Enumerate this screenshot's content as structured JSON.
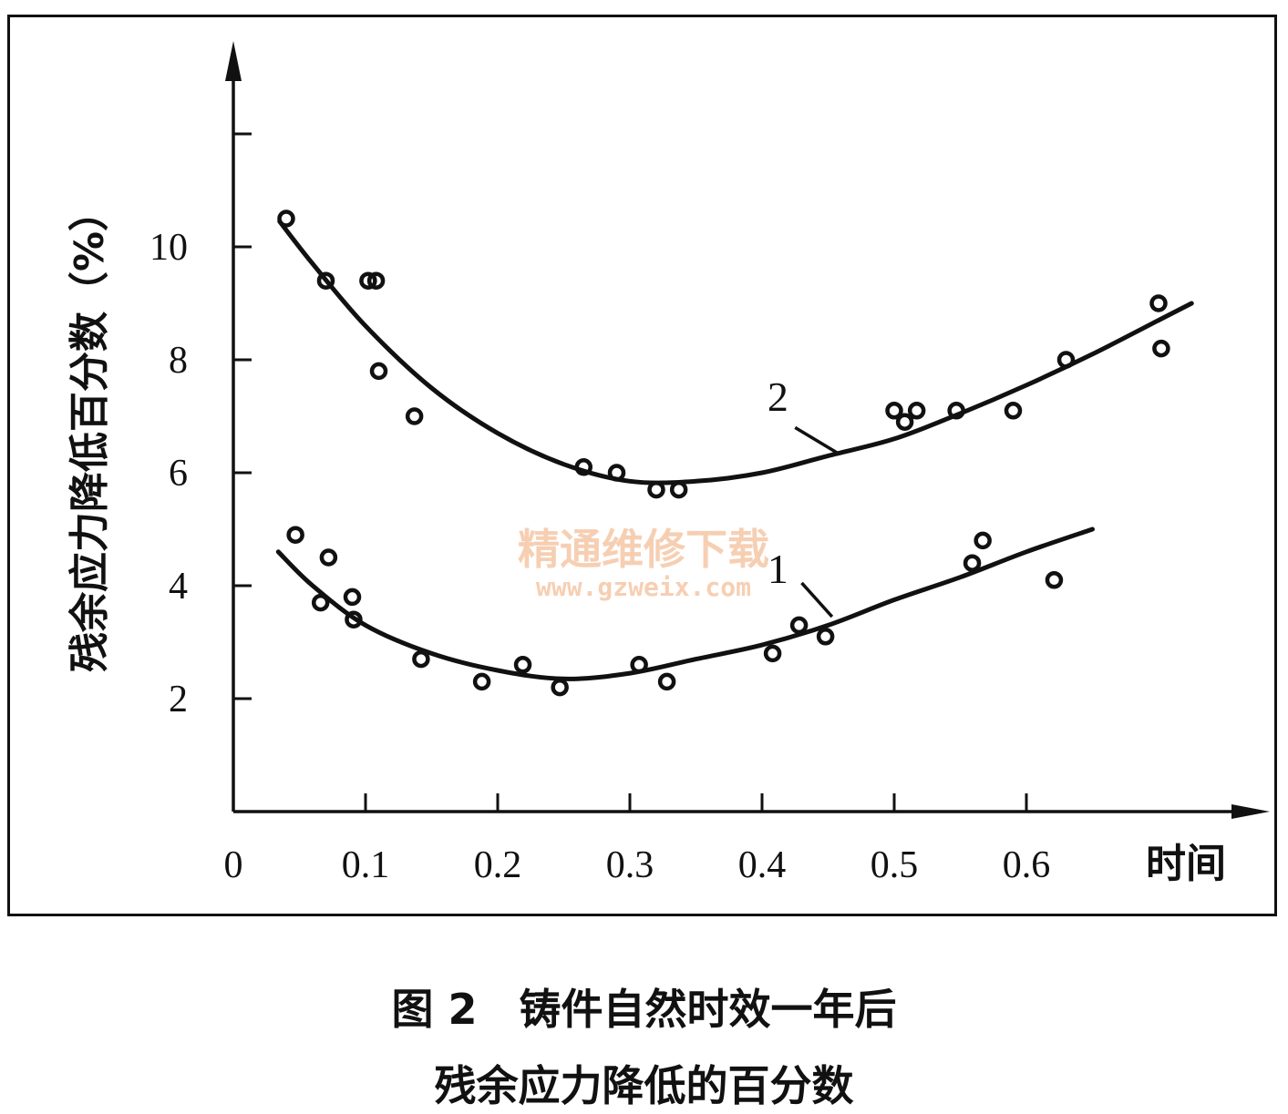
{
  "chart_data": {
    "type": "scatter",
    "title": "",
    "ylabel": "残余应力降低百分数（%）",
    "xlabel": "时间",
    "origin_label": "0",
    "xlim": [
      0,
      0.75
    ],
    "ylim": [
      0,
      12.2
    ],
    "x_ticks": [
      0.1,
      0.2,
      0.3,
      0.4,
      0.5,
      0.6
    ],
    "x_tick_labels": [
      "0.1",
      "0.2",
      "0.3",
      "0.4",
      "0.5",
      "0.6"
    ],
    "y_ticks": [
      2,
      4,
      6,
      8,
      10,
      12
    ],
    "y_tick_labels": [
      "2",
      "4",
      "6",
      "8",
      "10",
      ""
    ],
    "series": [
      {
        "name": "1",
        "points": [
          {
            "x": 0.047,
            "y": 4.9
          },
          {
            "x": 0.066,
            "y": 3.7
          },
          {
            "x": 0.072,
            "y": 4.5
          },
          {
            "x": 0.09,
            "y": 3.8
          },
          {
            "x": 0.091,
            "y": 3.4
          },
          {
            "x": 0.142,
            "y": 2.7
          },
          {
            "x": 0.188,
            "y": 2.3
          },
          {
            "x": 0.219,
            "y": 2.6
          },
          {
            "x": 0.247,
            "y": 2.2
          },
          {
            "x": 0.307,
            "y": 2.6
          },
          {
            "x": 0.328,
            "y": 2.3
          },
          {
            "x": 0.408,
            "y": 2.8
          },
          {
            "x": 0.428,
            "y": 3.3
          },
          {
            "x": 0.448,
            "y": 3.1
          },
          {
            "x": 0.559,
            "y": 4.4
          },
          {
            "x": 0.567,
            "y": 4.8
          },
          {
            "x": 0.621,
            "y": 4.1
          }
        ],
        "curve": [
          {
            "x": 0.034,
            "y": 4.6
          },
          {
            "x": 0.06,
            "y": 4.0
          },
          {
            "x": 0.1,
            "y": 3.3
          },
          {
            "x": 0.15,
            "y": 2.8
          },
          {
            "x": 0.2,
            "y": 2.5
          },
          {
            "x": 0.25,
            "y": 2.35
          },
          {
            "x": 0.3,
            "y": 2.45
          },
          {
            "x": 0.35,
            "y": 2.7
          },
          {
            "x": 0.4,
            "y": 2.95
          },
          {
            "x": 0.45,
            "y": 3.3
          },
          {
            "x": 0.5,
            "y": 3.75
          },
          {
            "x": 0.55,
            "y": 4.15
          },
          {
            "x": 0.6,
            "y": 4.6
          },
          {
            "x": 0.65,
            "y": 5.0
          }
        ]
      },
      {
        "name": "2",
        "points": [
          {
            "x": 0.04,
            "y": 10.5
          },
          {
            "x": 0.07,
            "y": 9.4
          },
          {
            "x": 0.102,
            "y": 9.4
          },
          {
            "x": 0.108,
            "y": 9.4
          },
          {
            "x": 0.11,
            "y": 7.8
          },
          {
            "x": 0.137,
            "y": 7.0
          },
          {
            "x": 0.265,
            "y": 6.1
          },
          {
            "x": 0.29,
            "y": 6.0
          },
          {
            "x": 0.32,
            "y": 5.7
          },
          {
            "x": 0.337,
            "y": 5.7
          },
          {
            "x": 0.5,
            "y": 7.1
          },
          {
            "x": 0.508,
            "y": 6.9
          },
          {
            "x": 0.517,
            "y": 7.1
          },
          {
            "x": 0.547,
            "y": 7.1
          },
          {
            "x": 0.59,
            "y": 7.1
          },
          {
            "x": 0.63,
            "y": 8.0
          },
          {
            "x": 0.7,
            "y": 9.0
          },
          {
            "x": 0.702,
            "y": 8.2
          }
        ],
        "curve": [
          {
            "x": 0.035,
            "y": 10.45
          },
          {
            "x": 0.06,
            "y": 9.7
          },
          {
            "x": 0.1,
            "y": 8.6
          },
          {
            "x": 0.15,
            "y": 7.5
          },
          {
            "x": 0.2,
            "y": 6.7
          },
          {
            "x": 0.25,
            "y": 6.15
          },
          {
            "x": 0.3,
            "y": 5.85
          },
          {
            "x": 0.35,
            "y": 5.85
          },
          {
            "x": 0.4,
            "y": 6.0
          },
          {
            "x": 0.45,
            "y": 6.3
          },
          {
            "x": 0.5,
            "y": 6.6
          },
          {
            "x": 0.55,
            "y": 7.05
          },
          {
            "x": 0.6,
            "y": 7.55
          },
          {
            "x": 0.65,
            "y": 8.1
          },
          {
            "x": 0.7,
            "y": 8.7
          },
          {
            "x": 0.725,
            "y": 9.0
          }
        ]
      }
    ],
    "grid": false,
    "legend": "none"
  },
  "watermark": {
    "line1": "精通维修下载",
    "line2": "www.gzweix.com"
  },
  "caption": {
    "line1": "图 2　铸件自然时效一年后",
    "line2": "残余应力降低的百分数"
  }
}
